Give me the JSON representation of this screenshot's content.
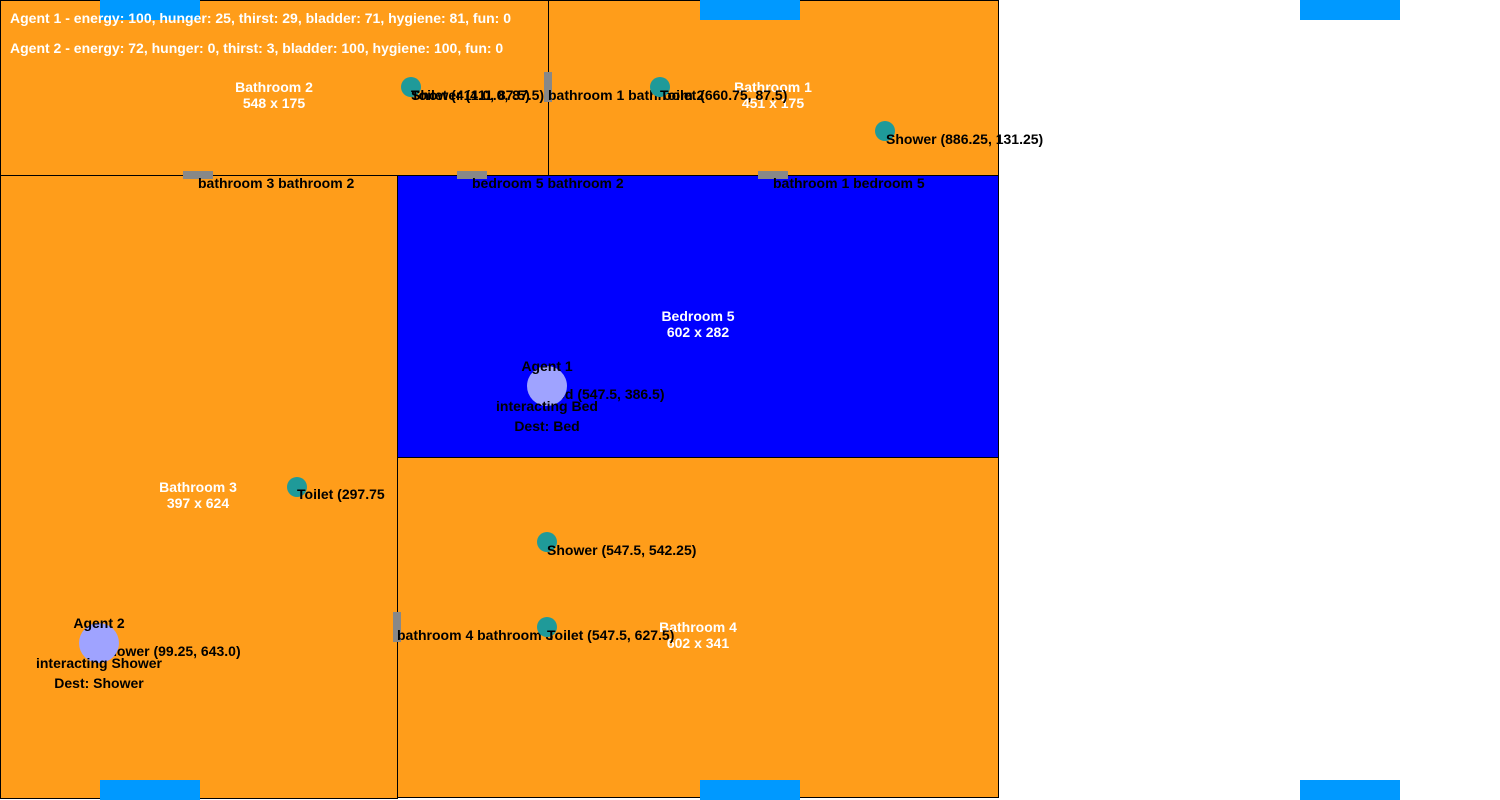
{
  "colors": {
    "room": "#ff9d1a",
    "bedroom": "#0000ff",
    "object": "#1f9a99",
    "agent": "#9fa3ff",
    "door": "#888888",
    "window": "#0099ff"
  },
  "status": {
    "agent1": "Agent 1 - energy: 100, hunger: 25, thirst: 29, bladder: 71, hygiene: 81, fun: 0",
    "agent2": "Agent 2 - energy: 72, hunger: 0, thirst: 3, bladder: 100, hygiene: 100, fun: 0"
  },
  "rooms": {
    "bathroom2": {
      "name": "Bathroom 2",
      "size": "548 x 175"
    },
    "bathroom1": {
      "name": "Bathroom 1",
      "size": "451 x 175"
    },
    "bathroom3": {
      "name": "Bathroom 3",
      "size": "397 x 624"
    },
    "bedroom5": {
      "name": "Bedroom 5",
      "size": "602 x 282"
    },
    "bathroom4": {
      "name": "Bathroom 4",
      "size": "602 x 341"
    }
  },
  "doors": {
    "b3_b2": "bathroom 3 bathroom 2",
    "bd5_b2": "bedroom 5 bathroom 2",
    "b1_bd5": "bathroom 1 bedroom 5",
    "b1_b2": "bathroom 1 bathroom 2",
    "b4_b3": "bathroom 4 bathroom 3"
  },
  "objects": {
    "b2_toilet": "Toilet (411.0, 87.5)",
    "b2_shower": "Shower (411.0, 87.5)",
    "b1_toilet": "Toilet (660.75, 87.5)",
    "b1_shower": "Shower (886.25, 131.25)",
    "b3_toilet": "Toilet (297.75",
    "b3_shower": "Shower (99.25, 643.0)",
    "bd5_bed": "Bed (547.5, 386.5)",
    "b4_shower": "Shower (547.5, 542.25)",
    "b4_toilet": "Toilet (547.5, 627.5)"
  },
  "agents": {
    "agent1": {
      "name": "Agent 1",
      "action": "interacting Bed",
      "dest": "Dest: Bed"
    },
    "agent2": {
      "name": "Agent 2",
      "action": "interacting Shower",
      "dest": "Dest: Shower"
    }
  }
}
